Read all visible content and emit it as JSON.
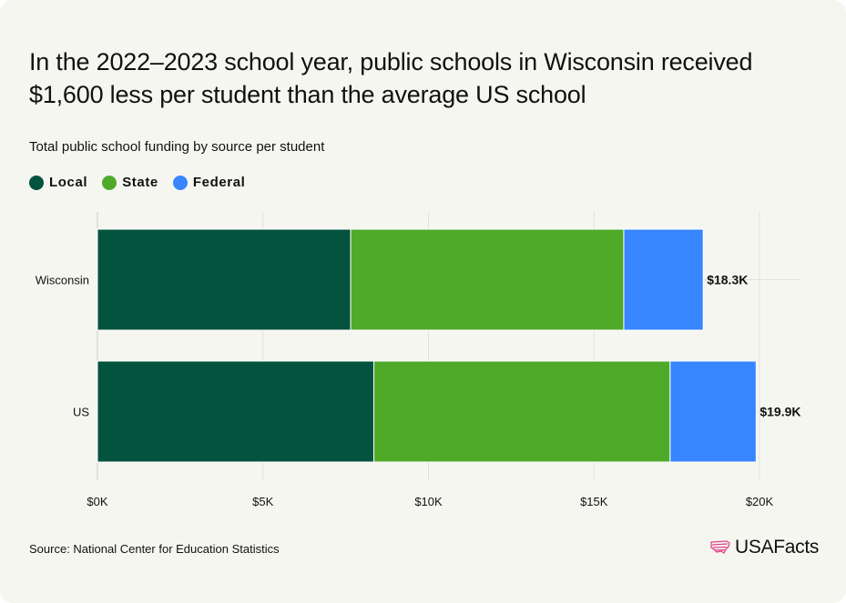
{
  "header": {
    "title": "In the 2022–2023 school year, public schools in Wisconsin received $1,600 less per student than the average US school",
    "subtitle": "Total public school funding by source per student"
  },
  "legend": [
    {
      "label": "Local",
      "color": "#03533f"
    },
    {
      "label": "State",
      "color": "#4faa2a"
    },
    {
      "label": "Federal",
      "color": "#3785ff"
    }
  ],
  "chart_data": {
    "type": "bar",
    "orientation": "horizontal",
    "stacked": true,
    "categories": [
      "Wisconsin",
      "US"
    ],
    "series": [
      {
        "name": "Local",
        "color": "#03533f",
        "values": [
          7650,
          8350
        ]
      },
      {
        "name": "State",
        "color": "#4faa2a",
        "values": [
          8250,
          8950
        ]
      },
      {
        "name": "Federal",
        "color": "#3785ff",
        "values": [
          2400,
          2600
        ]
      }
    ],
    "total_labels": [
      "$18.3K",
      "$19.9K"
    ],
    "xlim": [
      0,
      20000
    ],
    "xticks": [
      0,
      5000,
      10000,
      15000,
      20000
    ],
    "xtick_labels": [
      "$0K",
      "$5K",
      "$10K",
      "$15K",
      "$20K"
    ],
    "grid": true,
    "legend_position": "top-left"
  },
  "footer": {
    "source": "Source: National Center for Education Statistics",
    "logo_text": "USAFacts",
    "logo_icon": "us-map-flag-icon"
  }
}
